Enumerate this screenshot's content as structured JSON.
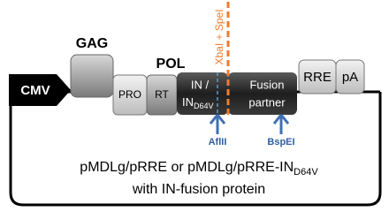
{
  "elements": {
    "cmv": "CMV",
    "gag": "GAG",
    "pol": "POL",
    "pro": "PRO",
    "rt": "RT",
    "in_line1": "IN /",
    "in_line2": "IN",
    "in_line2_sub": "D64V",
    "sites": "XbaI + SpeI",
    "fusion_line1": "Fusion",
    "fusion_line2": "partner",
    "rre": "RRE",
    "pa": "pA",
    "afl": "AflII",
    "bsp": "BspEI"
  },
  "caption": {
    "line1": "pMDLg/pRRE or pMDLg/pRRE-IN",
    "line1_sub": "D64V",
    "line2": "with IN-fusion protein"
  }
}
